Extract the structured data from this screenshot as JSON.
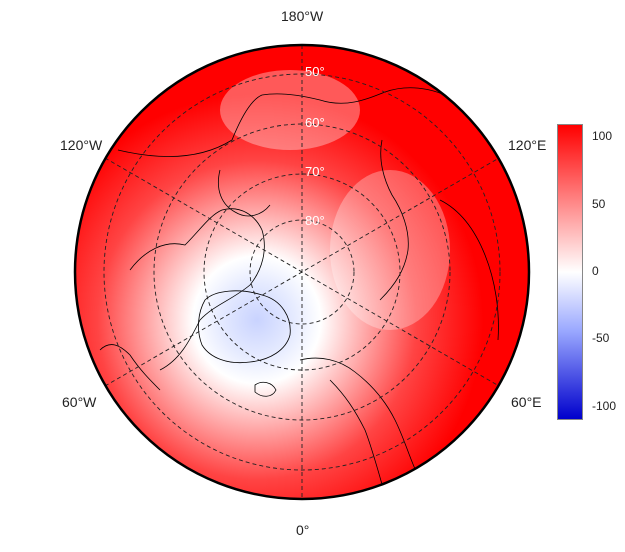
{
  "map": {
    "projection": "north polar stereographic",
    "longitude_labels": {
      "top": "180°W",
      "upper_left": "120°W",
      "upper_right": "120°E",
      "lower_left": "60°W",
      "lower_right": "60°E",
      "bottom": "0°"
    },
    "latitude_labels": [
      "50°",
      "60°",
      "70°",
      "80°"
    ],
    "colors": {
      "positive": "#ff0000",
      "zero": "#ffffff",
      "negative": "#0000cc"
    }
  },
  "colorbar": {
    "ticks": [
      "100",
      "50",
      "0",
      "-50",
      "-100"
    ],
    "tick_values": [
      100,
      50,
      0,
      -50,
      -100
    ],
    "range": [
      -110,
      110
    ]
  }
}
